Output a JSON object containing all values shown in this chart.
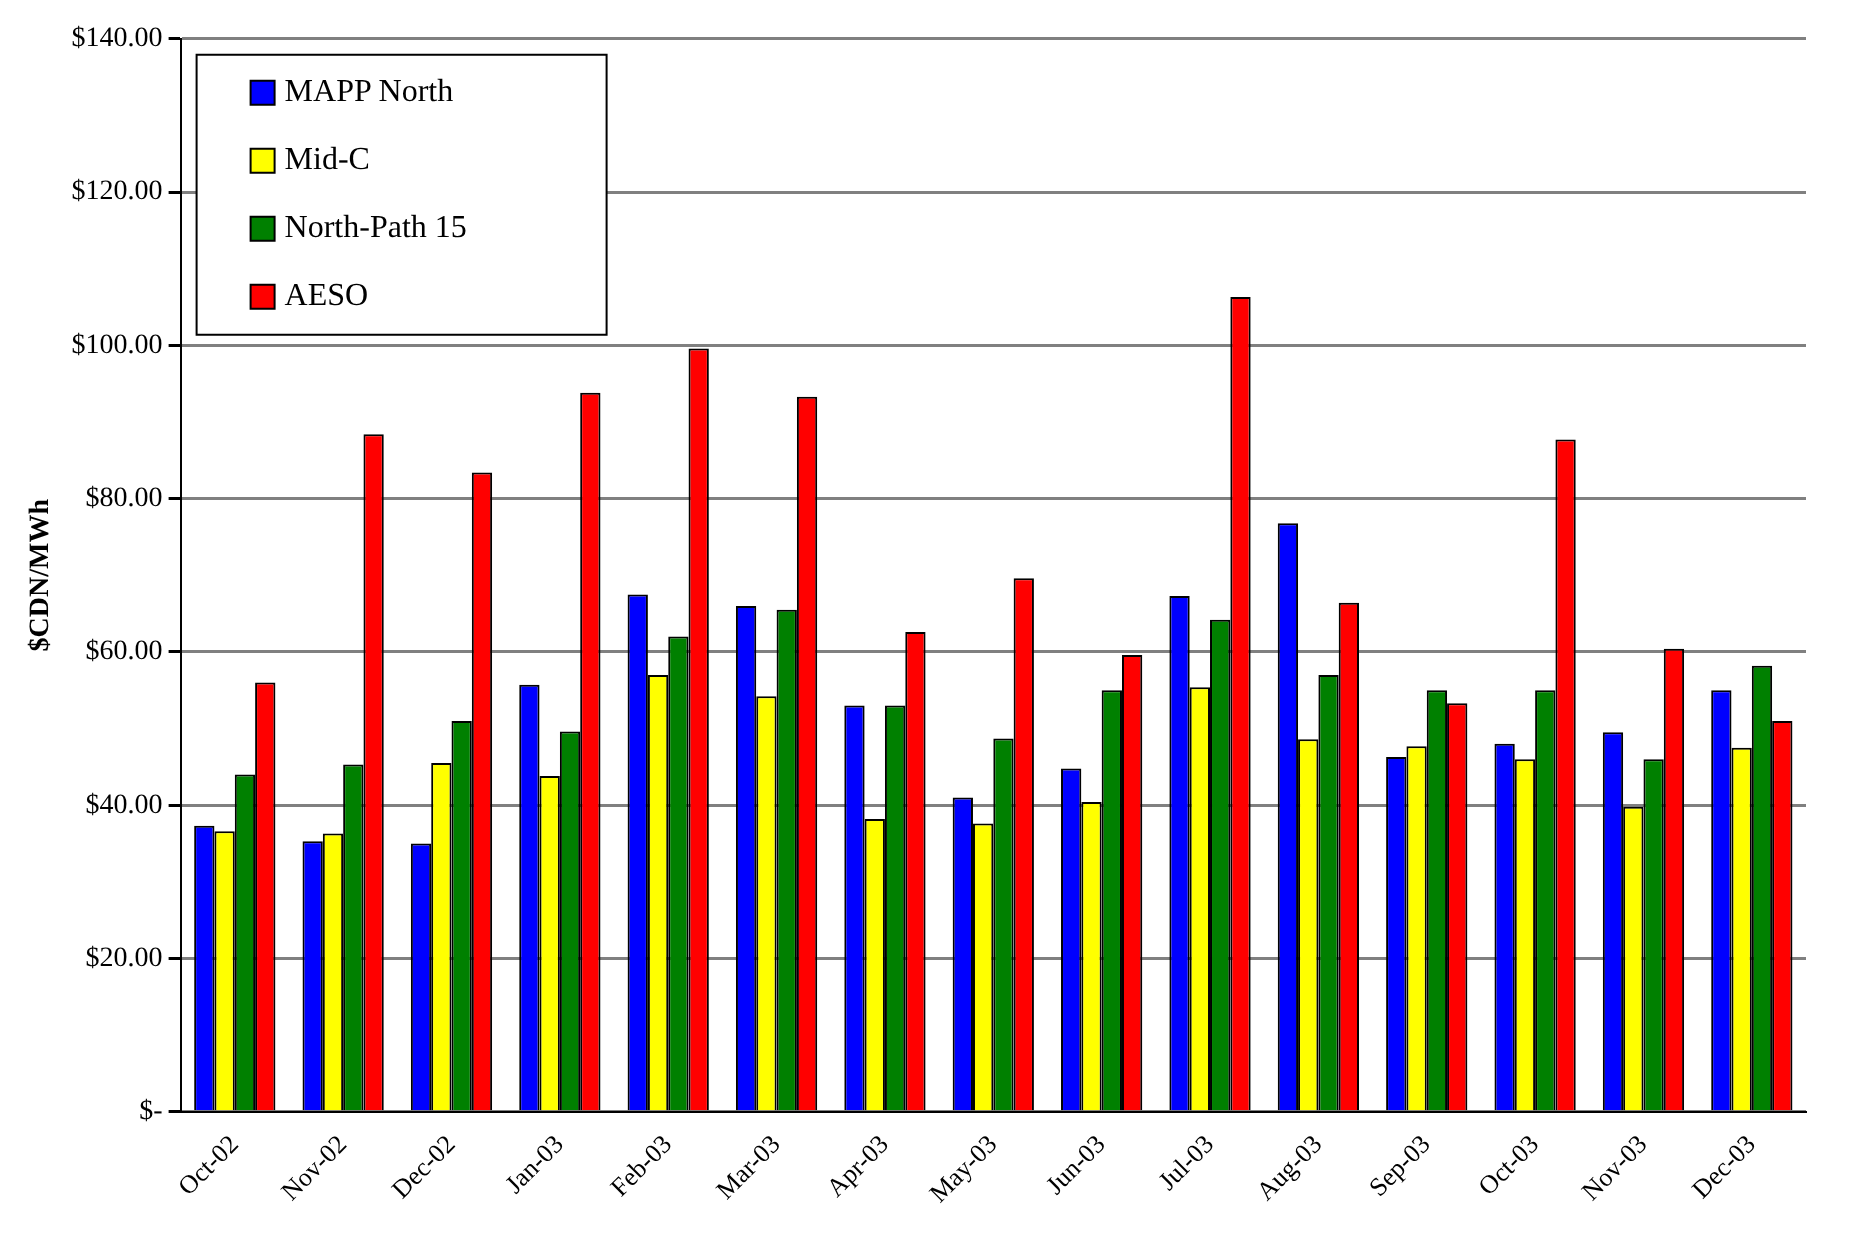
{
  "chart_data": {
    "type": "bar",
    "ylabel": "$CDN/MWh",
    "categories": [
      "Oct-02",
      "Nov-02",
      "Dec-02",
      "Jan-03",
      "Feb-03",
      "Mar-03",
      "Apr-03",
      "May-03",
      "Jun-03",
      "Jul-03",
      "Aug-03",
      "Sep-03",
      "Oct-03",
      "Nov-03",
      "Dec-03"
    ],
    "series": [
      {
        "name": "MAPP North",
        "color": "#0000ff",
        "values": [
          37.3,
          35.3,
          35,
          55.7,
          67.5,
          66,
          53,
          41,
          44.8,
          67.3,
          76.8,
          46.3,
          48,
          49.5,
          55
        ]
      },
      {
        "name": "Mid-C",
        "color": "#ffff00",
        "values": [
          36.6,
          36.3,
          45.5,
          43.8,
          57,
          54.2,
          38.2,
          37.6,
          40.4,
          55.4,
          48.6,
          47.7,
          46,
          39.8,
          47.5
        ]
      },
      {
        "name": "North-Path 15",
        "color": "#008000",
        "values": [
          44,
          45.3,
          51,
          49.6,
          62,
          65.5,
          53,
          48.7,
          55,
          64.2,
          57,
          55,
          55,
          46,
          58.2
        ]
      },
      {
        "name": "AESO",
        "color": "#ff0000",
        "values": [
          56,
          88.4,
          83.4,
          93.8,
          99.6,
          93.3,
          62.6,
          69.6,
          59.6,
          106.3,
          66.4,
          53.3,
          87.7,
          60.4,
          51
        ]
      }
    ],
    "ylim": [
      0,
      140
    ],
    "yticks": [
      {
        "value": 0,
        "label": "$-"
      },
      {
        "value": 20,
        "label": "$20.00"
      },
      {
        "value": 40,
        "label": "$40.00"
      },
      {
        "value": 60,
        "label": "$60.00"
      },
      {
        "value": 80,
        "label": "$80.00"
      },
      {
        "value": 100,
        "label": "$100.00"
      },
      {
        "value": 120,
        "label": "$120.00"
      },
      {
        "value": 140,
        "label": "$140.00"
      }
    ],
    "grid": "y",
    "legend": "top left"
  }
}
